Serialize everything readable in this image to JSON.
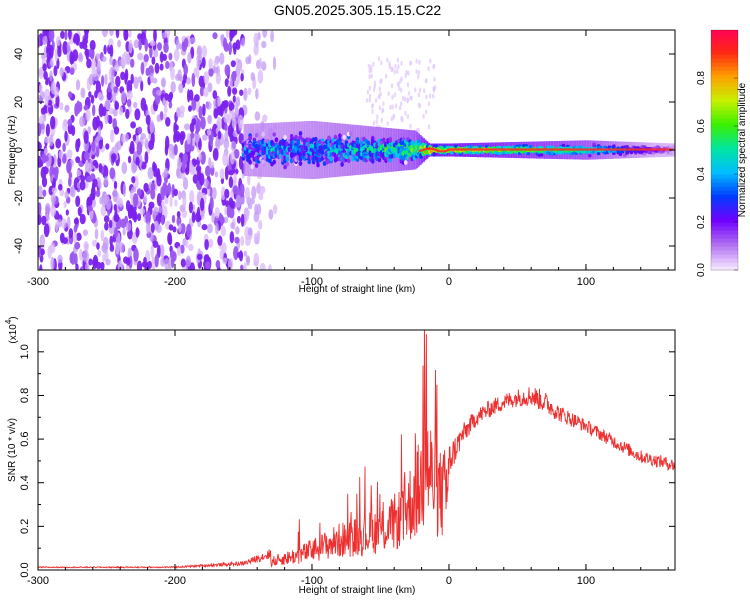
{
  "title": "GN05.2025.305.15.15.C22",
  "colors": {
    "snr_line": "#ee2f2f",
    "scatter": "#7b22ee",
    "ridge": "#ff2a2a"
  },
  "colorbar": {
    "label": "Normalized spectral amplitude",
    "ticks": [
      {
        "value": 0.0,
        "label": "0.0"
      },
      {
        "value": 0.2,
        "label": "0.2"
      },
      {
        "value": 0.4,
        "label": "0.4"
      },
      {
        "value": 0.6,
        "label": "0.6"
      },
      {
        "value": 0.8,
        "label": "0.8"
      }
    ],
    "range": [
      0,
      1
    ]
  },
  "chart_data": [
    {
      "type": "heatmap",
      "title": "GN05.2025.305.15.15.C22",
      "xlabel": "Height of straight line (km)",
      "ylabel": "Frequency (Hz)",
      "xlim": [
        -300,
        165
      ],
      "ylim": [
        -50,
        50
      ],
      "xticks": [
        {
          "value": -300,
          "label": "-300"
        },
        {
          "value": -200,
          "label": "-200"
        },
        {
          "value": -100,
          "label": "-100"
        },
        {
          "value": 0,
          "label": "0"
        },
        {
          "value": 100,
          "label": "100"
        }
      ],
      "yticks": [
        {
          "value": -40,
          "label": "-40"
        },
        {
          "value": -20,
          "label": "-20"
        },
        {
          "value": 0,
          "label": "0"
        },
        {
          "value": 20,
          "label": "20"
        },
        {
          "value": 40,
          "label": "40"
        }
      ],
      "noise_region": {
        "x_from": -300,
        "x_to": -150,
        "amplitude": 0.15
      },
      "band": [
        {
          "x": -150,
          "half_width_hz": 8,
          "amplitude": 0.3
        },
        {
          "x": -100,
          "half_width_hz": 9,
          "amplitude": 0.35
        },
        {
          "x": -50,
          "half_width_hz": 7,
          "amplitude": 0.45
        },
        {
          "x": -25,
          "half_width_hz": 6,
          "amplitude": 0.55
        },
        {
          "x": -15,
          "half_width_hz": 2,
          "amplitude": 0.85
        },
        {
          "x": 0,
          "half_width_hz": 2,
          "amplitude": 0.8
        },
        {
          "x": 100,
          "half_width_hz": 3,
          "amplitude": 0.55
        },
        {
          "x": 165,
          "half_width_hz": 2,
          "amplitude": 0.1
        }
      ]
    },
    {
      "type": "line",
      "xlabel": "Height of straight line (km)",
      "ylabel": "SNR (10 * v/v)",
      "y_multiplier": "(x10",
      "y_multiplier_exp": "4",
      "y_multiplier_close": ")",
      "xlim": [
        -300,
        165
      ],
      "ylim": [
        0,
        1.1
      ],
      "xticks": [
        {
          "value": -300,
          "label": "-300"
        },
        {
          "value": -200,
          "label": "-200"
        },
        {
          "value": -100,
          "label": "-100"
        },
        {
          "value": 0,
          "label": "0"
        },
        {
          "value": 100,
          "label": "100"
        }
      ],
      "yticks": [
        {
          "value": 0.0,
          "label": "0.0"
        },
        {
          "value": 0.2,
          "label": "0.2"
        },
        {
          "value": 0.4,
          "label": "0.4"
        },
        {
          "value": 0.6,
          "label": "0.6"
        },
        {
          "value": 0.8,
          "label": "0.8"
        },
        {
          "value": 1.0,
          "label": "1.0"
        }
      ],
      "series": [
        {
          "name": "SNR",
          "x": [
            -300,
            -250,
            -200,
            -150,
            -130,
            -110,
            -100,
            -80,
            -60,
            -45,
            -35,
            -25,
            -18,
            -15,
            -10,
            -5,
            0,
            10,
            20,
            30,
            40,
            50,
            60,
            70,
            80,
            100,
            120,
            140,
            165
          ],
          "y": [
            0.01,
            0.01,
            0.01,
            0.02,
            0.05,
            0.09,
            0.12,
            0.18,
            0.22,
            0.26,
            0.32,
            0.45,
            0.55,
            0.62,
            0.5,
            0.45,
            0.5,
            0.62,
            0.7,
            0.74,
            0.77,
            0.79,
            0.8,
            0.77,
            0.72,
            0.66,
            0.59,
            0.52,
            0.48
          ],
          "noise": [
            0.005,
            0.005,
            0.006,
            0.02,
            0.05,
            0.08,
            0.1,
            0.1,
            0.12,
            0.15,
            0.2,
            0.22,
            0.3,
            0.25,
            0.2,
            0.2,
            0.08,
            0.05,
            0.04,
            0.04,
            0.04,
            0.04,
            0.05,
            0.05,
            0.04,
            0.03,
            0.03,
            0.03,
            0.03
          ]
        }
      ]
    }
  ]
}
